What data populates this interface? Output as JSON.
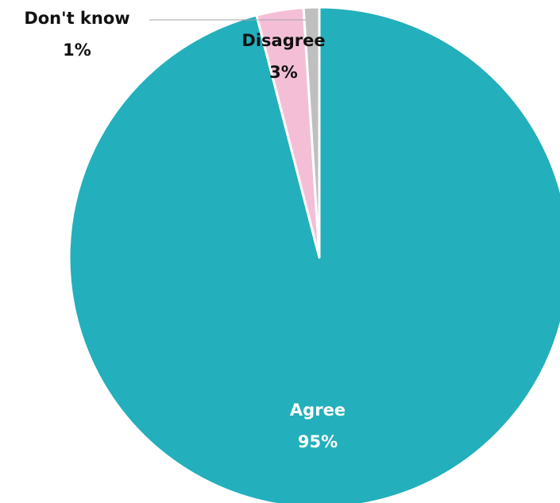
{
  "chart_data": {
    "type": "pie",
    "title": "",
    "slices": [
      {
        "label": "Don't know",
        "value": 1,
        "value_label": "1%",
        "color": "#BFBFBF"
      },
      {
        "label": "Disagree",
        "value": 3,
        "value_label": "3%",
        "color": "#F4BFD6"
      },
      {
        "label": "Agree",
        "value": 95,
        "value_label": "95%",
        "color": "#23AFBC"
      }
    ],
    "label_colors": {
      "Don't know": "#111111",
      "Disagree": "#111111",
      "Agree": "#FFFFFF"
    },
    "legend": "none",
    "start": "12 o'clock, counter-clockwise"
  }
}
